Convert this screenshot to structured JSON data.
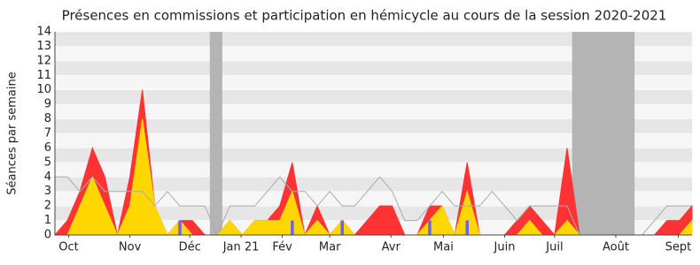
{
  "chart_data": {
    "type": "area",
    "title": "Présences en commissions et participation en hémicycle au cours de la session 2020-2021",
    "y_label": "Séances par semaine",
    "x": [
      0,
      1,
      2,
      3,
      4,
      5,
      6,
      7,
      8,
      9,
      10,
      11,
      12,
      13,
      14,
      15,
      16,
      17,
      18,
      19,
      20,
      21,
      22,
      23,
      24,
      25,
      26,
      27,
      28,
      29,
      30,
      31,
      32,
      33,
      34,
      35,
      36,
      37,
      38,
      39,
      40,
      41,
      42,
      43,
      44,
      45,
      46,
      47,
      48,
      49,
      50,
      51
    ],
    "xlim": [
      0,
      51
    ],
    "xticks": [
      {
        "value": 1.1,
        "label": "Oct"
      },
      {
        "value": 6,
        "label": "Nov"
      },
      {
        "value": 10.8,
        "label": "Déc"
      },
      {
        "value": 14.9,
        "label": "Jan 21"
      },
      {
        "value": 18.2,
        "label": "Fév"
      },
      {
        "value": 22,
        "label": "Mar"
      },
      {
        "value": 26.9,
        "label": "Avr"
      },
      {
        "value": 31.1,
        "label": "Mai"
      },
      {
        "value": 36,
        "label": "Juin"
      },
      {
        "value": 40,
        "label": "Juil"
      },
      {
        "value": 44.9,
        "label": "Août"
      },
      {
        "value": 49.9,
        "label": "Sept"
      }
    ],
    "ylim": [
      0,
      14
    ],
    "yticks": [
      0,
      1,
      2,
      3,
      4,
      5,
      6,
      7,
      8,
      9,
      10,
      11,
      12,
      13,
      14
    ],
    "grid": true,
    "shaded_ranges": [
      [
        12.4,
        13.4
      ],
      [
        41.4,
        46.4
      ]
    ],
    "shade_color": "#b4b4b4",
    "series": [
      {
        "style": "area",
        "color": "#ff3333",
        "values": [
          0,
          1,
          3,
          6,
          4,
          0,
          4,
          10,
          2,
          0,
          1,
          1,
          0,
          0,
          1,
          0,
          1,
          1,
          2,
          5,
          0,
          2,
          0,
          1,
          0,
          1,
          2,
          2,
          0,
          0,
          2,
          2,
          0,
          5,
          0,
          0,
          0,
          1,
          2,
          1,
          0,
          6,
          0,
          0,
          0,
          0,
          0,
          0,
          0,
          1,
          1,
          2
        ]
      },
      {
        "style": "area",
        "color": "#ffd700",
        "values": [
          0,
          0,
          2,
          4,
          2,
          0,
          2,
          8,
          2,
          0,
          1,
          0,
          0,
          0,
          1,
          0,
          1,
          1,
          1,
          3,
          0,
          1,
          0,
          1,
          0,
          0,
          0,
          0,
          0,
          0,
          1,
          2,
          0,
          3,
          0,
          0,
          0,
          0,
          1,
          0,
          0,
          1,
          0,
          0,
          0,
          0,
          0,
          0,
          0,
          0,
          0,
          1
        ]
      },
      {
        "style": "line",
        "color": "#aaaaaa",
        "values": [
          4,
          4,
          3,
          4,
          3,
          3,
          3,
          3,
          2,
          3,
          2,
          2,
          2,
          0,
          2,
          2,
          2,
          3,
          4,
          3,
          3,
          2,
          3,
          2,
          2,
          3,
          4,
          3,
          1,
          1,
          2,
          3,
          2,
          2,
          2,
          3,
          2,
          1,
          2,
          2,
          2,
          2,
          0,
          0,
          0,
          0,
          0,
          0,
          1,
          2,
          2,
          2
        ]
      },
      {
        "style": "bar",
        "color": "#6666ee",
        "values": [
          0,
          0,
          0,
          0,
          0,
          0,
          0,
          0,
          0,
          0,
          1,
          0,
          0,
          0,
          0,
          0,
          0,
          0,
          0,
          1,
          0,
          0,
          0,
          1,
          0,
          0,
          0,
          0,
          0,
          0,
          1,
          0,
          0,
          1,
          0,
          0,
          0,
          0,
          0,
          0,
          0,
          0,
          0,
          0,
          0,
          0,
          0,
          0,
          0,
          0,
          0,
          0
        ]
      }
    ]
  }
}
